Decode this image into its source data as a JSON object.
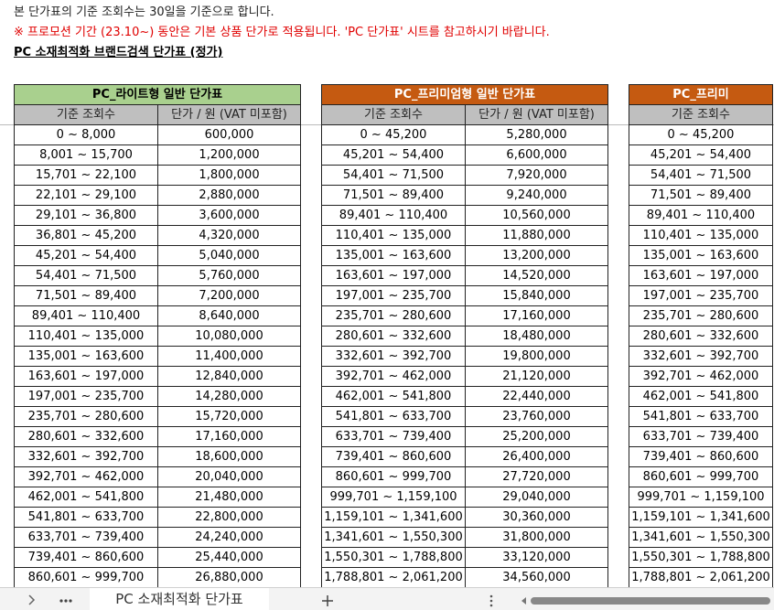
{
  "notes": {
    "line1": "본 단가표의 기준 조회수는 30일을 기준으로 합니다.",
    "line2": "※ 프로모션 기간 (23.10~) 동안은 기본 상품 단가로 적용됩니다.  'PC 단가표' 시트를 참고하시기 바랍니다.",
    "heading": "PC 소재최적화 브랜드검색 단가표 (정가)"
  },
  "tables": [
    {
      "title": "PC_라이트형 일반 단가표",
      "headers": [
        "기준 조회수",
        "단가 / 원 (VAT 미포함)"
      ],
      "rows": [
        [
          "0 ~ 8,000",
          "600,000"
        ],
        [
          "8,001 ~ 15,700",
          "1,200,000"
        ],
        [
          "15,701 ~ 22,100",
          "1,800,000"
        ],
        [
          "22,101 ~ 29,100",
          "2,880,000"
        ],
        [
          "29,101 ~ 36,800",
          "3,600,000"
        ],
        [
          "36,801 ~ 45,200",
          "4,320,000"
        ],
        [
          "45,201 ~ 54,400",
          "5,040,000"
        ],
        [
          "54,401 ~ 71,500",
          "5,760,000"
        ],
        [
          "71,501 ~ 89,400",
          "7,200,000"
        ],
        [
          "89,401 ~ 110,400",
          "8,640,000"
        ],
        [
          "110,401 ~ 135,000",
          "10,080,000"
        ],
        [
          "135,001 ~ 163,600",
          "11,400,000"
        ],
        [
          "163,601 ~ 197,000",
          "12,840,000"
        ],
        [
          "197,001 ~ 235,700",
          "14,280,000"
        ],
        [
          "235,701 ~ 280,600",
          "15,720,000"
        ],
        [
          "280,601 ~ 332,600",
          "17,160,000"
        ],
        [
          "332,601 ~ 392,700",
          "18,600,000"
        ],
        [
          "392,701 ~ 462,000",
          "20,040,000"
        ],
        [
          "462,001 ~ 541,800",
          "21,480,000"
        ],
        [
          "541,801 ~ 633,700",
          "22,800,000"
        ],
        [
          "633,701 ~ 739,400",
          "24,240,000"
        ],
        [
          "739,401 ~ 860,600",
          "25,440,000"
        ],
        [
          "860,601 ~ 999,700",
          "26,880,000"
        ]
      ]
    },
    {
      "title": "PC_프리미엄형 일반 단가표",
      "headers": [
        "기준 조회수",
        "단가 / 원 (VAT 미포함)"
      ],
      "rows": [
        [
          "0 ~ 45,200",
          "5,280,000"
        ],
        [
          "45,201 ~ 54,400",
          "6,600,000"
        ],
        [
          "54,401 ~ 71,500",
          "7,920,000"
        ],
        [
          "71,501 ~ 89,400",
          "9,240,000"
        ],
        [
          "89,401 ~ 110,400",
          "10,560,000"
        ],
        [
          "110,401 ~ 135,000",
          "11,880,000"
        ],
        [
          "135,001 ~ 163,600",
          "13,200,000"
        ],
        [
          "163,601 ~ 197,000",
          "14,520,000"
        ],
        [
          "197,001 ~ 235,700",
          "15,840,000"
        ],
        [
          "235,701 ~ 280,600",
          "17,160,000"
        ],
        [
          "280,601 ~ 332,600",
          "18,480,000"
        ],
        [
          "332,601 ~ 392,700",
          "19,800,000"
        ],
        [
          "392,701 ~ 462,000",
          "21,120,000"
        ],
        [
          "462,001 ~ 541,800",
          "22,440,000"
        ],
        [
          "541,801 ~ 633,700",
          "23,760,000"
        ],
        [
          "633,701 ~ 739,400",
          "25,200,000"
        ],
        [
          "739,401 ~ 860,600",
          "26,400,000"
        ],
        [
          "860,601 ~ 999,700",
          "27,720,000"
        ],
        [
          "999,701 ~ 1,159,100",
          "29,040,000"
        ],
        [
          "1,159,101 ~ 1,341,600",
          "30,360,000"
        ],
        [
          "1,341,601 ~ 1,550,300",
          "31,800,000"
        ],
        [
          "1,550,301 ~ 1,788,800",
          "33,120,000"
        ],
        [
          "1,788,801 ~ 2,061,200",
          "34,560,000"
        ]
      ]
    },
    {
      "title": "PC_프리미",
      "headers": [
        "기준 조회수"
      ],
      "rows": [
        [
          "0 ~ 45,200"
        ],
        [
          "45,201 ~ 54,400"
        ],
        [
          "54,401 ~ 71,500"
        ],
        [
          "71,501 ~ 89,400"
        ],
        [
          "89,401 ~ 110,400"
        ],
        [
          "110,401 ~ 135,000"
        ],
        [
          "135,001 ~ 163,600"
        ],
        [
          "163,601 ~ 197,000"
        ],
        [
          "197,001 ~ 235,700"
        ],
        [
          "235,701 ~ 280,600"
        ],
        [
          "280,601 ~ 332,600"
        ],
        [
          "332,601 ~ 392,700"
        ],
        [
          "392,701 ~ 462,000"
        ],
        [
          "462,001 ~ 541,800"
        ],
        [
          "541,801 ~ 633,700"
        ],
        [
          "633,701 ~ 739,400"
        ],
        [
          "739,401 ~ 860,600"
        ],
        [
          "860,601 ~ 999,700"
        ],
        [
          "999,701 ~ 1,159,100"
        ],
        [
          "1,159,101 ~ 1,341,600"
        ],
        [
          "1,341,601 ~ 1,550,300"
        ],
        [
          "1,550,301 ~ 1,788,800"
        ],
        [
          "1,788,801 ~ 2,061,200"
        ]
      ]
    }
  ],
  "sheet_tab": "PC 소재최적화 단가표"
}
